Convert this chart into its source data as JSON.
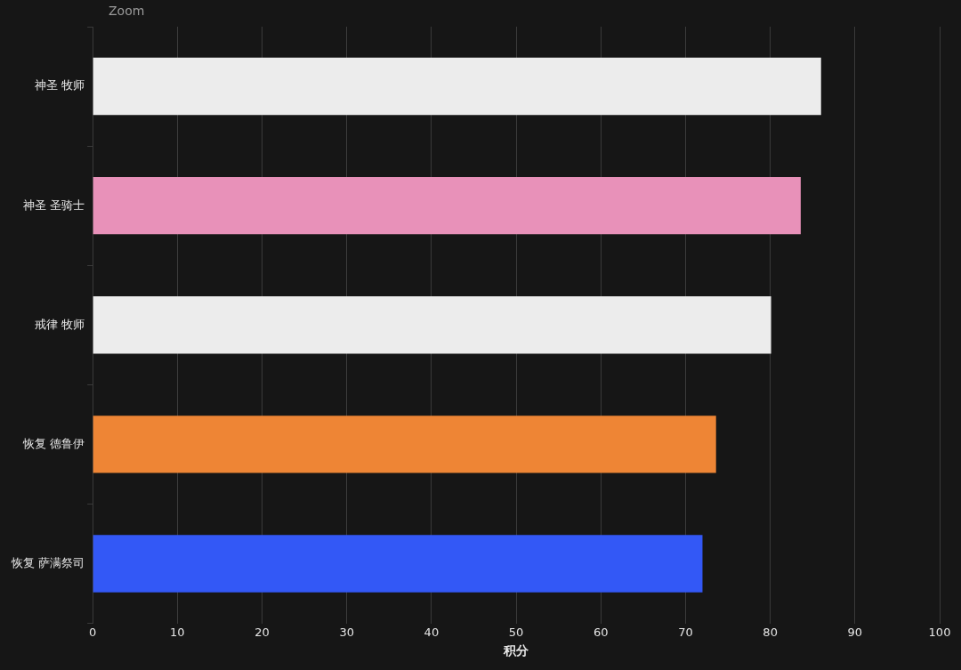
{
  "chart_data": {
    "type": "bar",
    "orientation": "horizontal",
    "xlabel": "积分",
    "annotations": [
      "Zoom"
    ],
    "categories": [
      "神圣 牧师",
      "神圣 圣骑士",
      "戒律 牧师",
      "恢复 德鲁伊",
      "恢复 萨满祭司"
    ],
    "values": [
      86.0,
      83.6,
      80.1,
      73.6,
      72.0
    ],
    "colors": [
      "#ececec",
      "#e891b9",
      "#ececec",
      "#ee8535",
      "#3358f6"
    ],
    "xlim": [
      0,
      100
    ],
    "xticks": [
      0,
      10,
      20,
      30,
      40,
      50,
      60,
      70,
      80,
      90,
      100
    ],
    "grid": "x",
    "legend": false
  }
}
